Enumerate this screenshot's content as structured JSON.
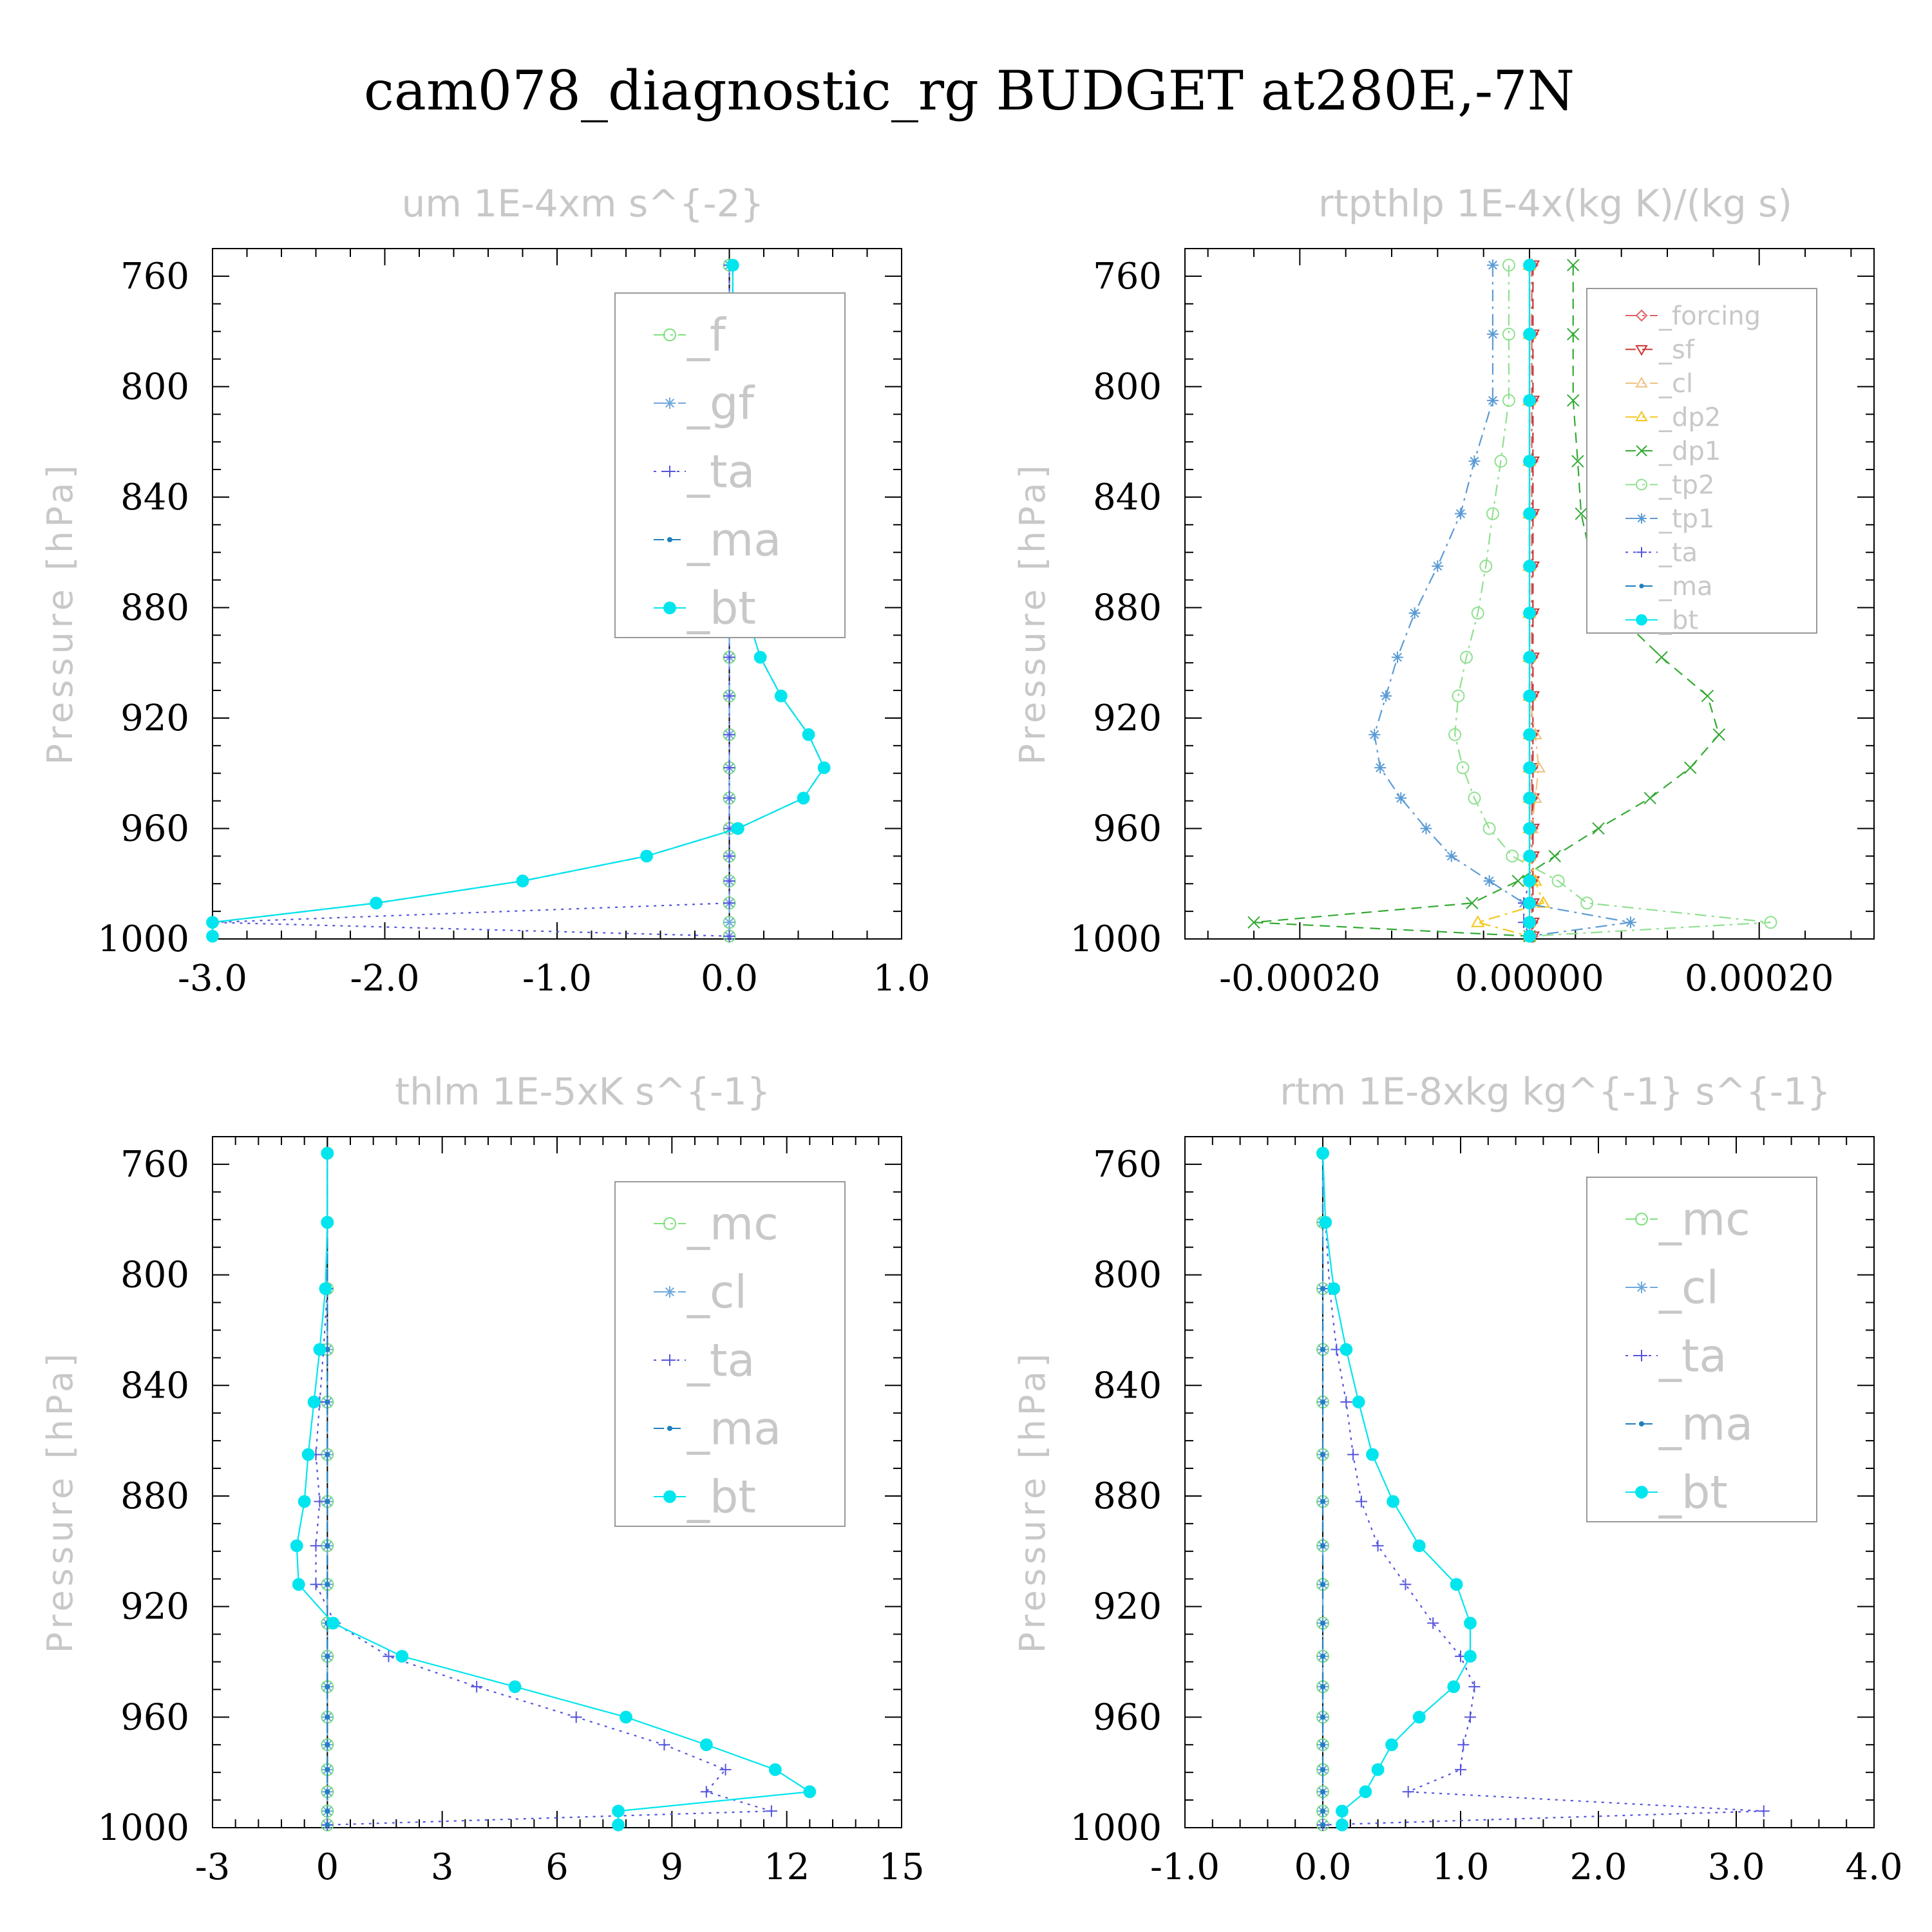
{
  "title": "cam078_diagnostic_rg  BUDGET at280E,-7N",
  "chart_data": [
    {
      "type": "line",
      "title": "um   1E-4xm s^{-2}",
      "ylabel": "Pressure [hPa]",
      "xlim": [
        -3.0,
        1.0
      ],
      "ylim": [
        1000,
        750
      ],
      "xticks": [
        "-3.0",
        "-2.0",
        "-1.0",
        "0.0",
        "1.0"
      ],
      "xtick_values": [
        -3,
        -2,
        -1,
        0,
        1
      ],
      "yticks": [
        "760",
        "800",
        "840",
        "880",
        "920",
        "960",
        "1000"
      ],
      "ytick_values": [
        760,
        800,
        840,
        880,
        920,
        960,
        1000
      ],
      "pressure": [
        756,
        781,
        805,
        827,
        846,
        865,
        882,
        898,
        912,
        926,
        938,
        949,
        960,
        970,
        979,
        987,
        994,
        999
      ],
      "legend_size": "large",
      "series": [
        {
          "name": "_f",
          "color": "#7fe07f",
          "marker": "circle-open",
          "dash": "dash-dot",
          "values": [
            0,
            0,
            0,
            0,
            0,
            0,
            0,
            0,
            0,
            0,
            0,
            0,
            0,
            0,
            0,
            0,
            0,
            0
          ]
        },
        {
          "name": "_gf",
          "color": "#6fa8dc",
          "marker": "asterisk",
          "dash": "dash-dot",
          "values": [
            0,
            0,
            0,
            0,
            0,
            0,
            0,
            0,
            0,
            0,
            0,
            0,
            0,
            0,
            0,
            0,
            0,
            0
          ]
        },
        {
          "name": "_ta",
          "color": "#5555dd",
          "marker": "plus",
          "dash": "dot",
          "values": [
            0,
            0,
            0,
            0,
            0,
            0,
            0,
            0,
            0,
            0,
            0,
            0,
            0,
            0,
            0,
            0,
            -3.0,
            0
          ]
        },
        {
          "name": "_ma",
          "color": "#1f7fbf",
          "marker": "dot",
          "dash": "dash",
          "values": [
            0.02,
            0.02,
            0.03,
            0.03,
            0.05,
            0.07,
            0.1,
            0.18,
            0.3,
            0.46,
            0.55,
            0.43,
            0.05,
            -0.48,
            -1.2,
            -2.05,
            -3.0,
            -3.0
          ]
        },
        {
          "name": "_bt",
          "color": "#00e5ee",
          "marker": "filled",
          "dash": "solid",
          "values": [
            0.02,
            0.02,
            0.03,
            0.03,
            0.05,
            0.07,
            0.1,
            0.18,
            0.3,
            0.46,
            0.55,
            0.43,
            0.05,
            -0.48,
            -1.2,
            -2.05,
            -3.0,
            -3.0
          ]
        }
      ]
    },
    {
      "type": "line",
      "title": "rtpthlp   1E-4x(kg K)/(kg s)",
      "ylabel": "Pressure [hPa]",
      "xlim": [
        -0.0003,
        0.0003
      ],
      "ylim": [
        1000,
        750
      ],
      "xticks": [
        "-0.00020",
        "0.00000",
        "0.00020"
      ],
      "xtick_values": [
        -0.0002,
        0,
        0.0002
      ],
      "yticks": [
        "760",
        "800",
        "840",
        "880",
        "920",
        "960",
        "1000"
      ],
      "ytick_values": [
        760,
        800,
        840,
        880,
        920,
        960,
        1000
      ],
      "pressure": [
        756,
        781,
        805,
        827,
        846,
        865,
        882,
        898,
        912,
        926,
        938,
        949,
        960,
        970,
        979,
        987,
        994,
        999
      ],
      "legend_size": "small",
      "series": [
        {
          "name": "_forcing",
          "color": "#e06060",
          "marker": "diamond-open",
          "dash": "dash-dot",
          "values": [
            2e-06,
            2e-06,
            2e-06,
            2e-06,
            2e-06,
            2e-06,
            2e-06,
            2e-06,
            2e-06,
            2e-06,
            2e-06,
            2e-06,
            2e-06,
            2e-06,
            2e-06,
            2e-06,
            2e-06,
            2e-06
          ]
        },
        {
          "name": "_sf",
          "color": "#cc3333",
          "marker": "triangle-down-open",
          "dash": "dash",
          "values": [
            3e-06,
            3e-06,
            3e-06,
            3e-06,
            3e-06,
            3e-06,
            3e-06,
            3e-06,
            3e-06,
            3e-06,
            3e-06,
            3e-06,
            3e-06,
            3e-06,
            3e-06,
            3e-06,
            3e-06,
            3e-06
          ]
        },
        {
          "name": "_cl",
          "color": "#f0c080",
          "marker": "triangle-up-open",
          "dash": "dash-dot",
          "values": [
            0,
            0,
            0,
            0,
            0,
            0,
            0,
            0,
            0,
            5e-06,
            8e-06,
            5e-06,
            2e-06,
            0,
            0,
            0,
            0,
            0
          ]
        },
        {
          "name": "_dp2",
          "color": "#f5c518",
          "marker": "triangle-up-open",
          "dash": "dash-dot",
          "values": [
            0,
            0,
            0,
            0,
            0,
            0,
            0,
            0,
            0,
            0,
            0,
            0,
            0,
            0,
            5e-06,
            1.2e-05,
            -4.5e-05,
            0
          ]
        },
        {
          "name": "_dp1",
          "color": "#33aa33",
          "marker": "cross",
          "dash": "dash",
          "values": [
            3.8e-05,
            3.8e-05,
            3.8e-05,
            4.2e-05,
            4.5e-05,
            5.5e-05,
            7.5e-05,
            0.000115,
            0.000155,
            0.000165,
            0.00014,
            0.000105,
            6e-05,
            2.2e-05,
            -1e-05,
            -5e-05,
            -0.00024,
            0
          ]
        },
        {
          "name": "_tp2",
          "color": "#90e090",
          "marker": "circle-open",
          "dash": "dash-dot",
          "values": [
            -1.8e-05,
            -1.8e-05,
            -1.8e-05,
            -2.5e-05,
            -3.2e-05,
            -3.8e-05,
            -4.5e-05,
            -5.5e-05,
            -6.2e-05,
            -6.5e-05,
            -5.8e-05,
            -4.8e-05,
            -3.5e-05,
            -1.5e-05,
            2.5e-05,
            5e-05,
            0.00021,
            0
          ]
        },
        {
          "name": "_tp1",
          "color": "#5b9bd5",
          "marker": "asterisk",
          "dash": "dash-dot",
          "values": [
            -3.2e-05,
            -3.2e-05,
            -3.2e-05,
            -4.8e-05,
            -6e-05,
            -8e-05,
            -0.0001,
            -0.000115,
            -0.000125,
            -0.000135,
            -0.00013,
            -0.000112,
            -9e-05,
            -6.8e-05,
            -3.5e-05,
            -5e-06,
            8.8e-05,
            0
          ]
        },
        {
          "name": "_ta",
          "color": "#5555dd",
          "marker": "plus",
          "dash": "dot",
          "values": [
            0,
            0,
            0,
            0,
            0,
            0,
            0,
            0,
            0,
            0,
            0,
            0,
            0,
            0,
            0,
            -5e-06,
            -5e-06,
            0
          ]
        },
        {
          "name": "_ma",
          "color": "#1f7fbf",
          "marker": "dot",
          "dash": "dash",
          "values": [
            0,
            0,
            0,
            0,
            0,
            0,
            0,
            0,
            0,
            0,
            0,
            0,
            0,
            0,
            0,
            0,
            0,
            0
          ]
        },
        {
          "name": "_bt",
          "color": "#00e5ee",
          "marker": "filled",
          "dash": "solid",
          "values": [
            0,
            0,
            0,
            0,
            0,
            0,
            0,
            0,
            0,
            0,
            0,
            0,
            0,
            0,
            0,
            0,
            0,
            0
          ]
        }
      ]
    },
    {
      "type": "line",
      "title": "thlm   1E-5xK s^{-1}",
      "ylabel": "Pressure [hPa]",
      "xlim": [
        -3,
        15
      ],
      "ylim": [
        1000,
        750
      ],
      "xticks": [
        "-3",
        "0",
        "3",
        "6",
        "9",
        "12",
        "15"
      ],
      "xtick_values": [
        -3,
        0,
        3,
        6,
        9,
        12,
        15
      ],
      "yticks": [
        "760",
        "800",
        "840",
        "880",
        "920",
        "960",
        "1000"
      ],
      "ytick_values": [
        760,
        800,
        840,
        880,
        920,
        960,
        1000
      ],
      "pressure": [
        756,
        781,
        805,
        827,
        846,
        865,
        882,
        898,
        912,
        926,
        938,
        949,
        960,
        970,
        979,
        987,
        994,
        999
      ],
      "legend_size": "large",
      "series": [
        {
          "name": "_mc",
          "color": "#7fe07f",
          "marker": "circle-open",
          "dash": "dash-dot",
          "values": [
            0,
            0,
            0,
            0,
            0,
            0,
            0,
            0,
            0,
            0,
            0,
            0,
            0,
            0,
            0,
            0,
            0,
            0
          ]
        },
        {
          "name": "_cl",
          "color": "#6fa8dc",
          "marker": "asterisk",
          "dash": "dash-dot",
          "values": [
            0,
            0,
            0,
            0,
            0,
            0,
            0,
            0,
            0,
            0,
            0,
            0,
            0,
            0,
            0,
            0,
            0,
            0
          ]
        },
        {
          "name": "_ta",
          "color": "#5555dd",
          "marker": "plus",
          "dash": "dot",
          "values": [
            0,
            0,
            0,
            -0.1,
            -0.2,
            -0.3,
            -0.2,
            -0.3,
            -0.3,
            0.2,
            1.6,
            3.9,
            6.5,
            8.8,
            10.4,
            9.9,
            11.6,
            0
          ]
        },
        {
          "name": "_ma",
          "color": "#1f7fbf",
          "marker": "dot",
          "dash": "dash",
          "values": [
            0,
            0,
            0,
            0,
            0,
            0,
            0,
            0,
            0,
            0,
            0,
            0,
            0,
            0,
            0,
            0,
            0,
            0
          ]
        },
        {
          "name": "_bt",
          "color": "#00e5ee",
          "marker": "filled",
          "dash": "solid",
          "values": [
            0,
            0,
            -0.05,
            -0.2,
            -0.35,
            -0.5,
            -0.6,
            -0.8,
            -0.75,
            0.15,
            1.95,
            4.9,
            7.8,
            9.9,
            11.7,
            12.6,
            7.6,
            7.6
          ]
        }
      ]
    },
    {
      "type": "line",
      "title": "rtm   1E-8xkg kg^{-1} s^{-1}",
      "ylabel": "Pressure [hPa]",
      "xlim": [
        -1.0,
        4.0
      ],
      "ylim": [
        1000,
        750
      ],
      "xticks": [
        "-1.0",
        "0.0",
        "1.0",
        "2.0",
        "3.0",
        "4.0"
      ],
      "xtick_values": [
        -1,
        0,
        1,
        2,
        3,
        4
      ],
      "yticks": [
        "760",
        "800",
        "840",
        "880",
        "920",
        "960",
        "1000"
      ],
      "ytick_values": [
        760,
        800,
        840,
        880,
        920,
        960,
        1000
      ],
      "pressure": [
        756,
        781,
        805,
        827,
        846,
        865,
        882,
        898,
        912,
        926,
        938,
        949,
        960,
        970,
        979,
        987,
        994,
        999
      ],
      "legend_size": "large",
      "series": [
        {
          "name": "_mc",
          "color": "#7fe07f",
          "marker": "circle-open",
          "dash": "dash-dot",
          "values": [
            0,
            0,
            0,
            0,
            0,
            0,
            0,
            0,
            0,
            0,
            0,
            0,
            0,
            0,
            0,
            0,
            0,
            0
          ]
        },
        {
          "name": "_cl",
          "color": "#6fa8dc",
          "marker": "asterisk",
          "dash": "dash-dot",
          "values": [
            0,
            0,
            0,
            0,
            0,
            0,
            0,
            0,
            0,
            0,
            0,
            0,
            0,
            0,
            0,
            0,
            0,
            0
          ]
        },
        {
          "name": "_ta",
          "color": "#5555dd",
          "marker": "plus",
          "dash": "dot",
          "values": [
            0,
            0.02,
            0.05,
            0.1,
            0.17,
            0.22,
            0.28,
            0.4,
            0.6,
            0.8,
            1.0,
            1.1,
            1.07,
            1.02,
            1.0,
            0.62,
            3.2,
            0
          ]
        },
        {
          "name": "_ma",
          "color": "#1f7fbf",
          "marker": "dot",
          "dash": "dash",
          "values": [
            0,
            0,
            0,
            0,
            0,
            0,
            0,
            0,
            0,
            0,
            0,
            0,
            0,
            0,
            0,
            0,
            0,
            0
          ]
        },
        {
          "name": "_bt",
          "color": "#00e5ee",
          "marker": "filled",
          "dash": "solid",
          "values": [
            0.0,
            0.02,
            0.08,
            0.17,
            0.26,
            0.36,
            0.51,
            0.7,
            0.97,
            1.07,
            1.07,
            0.95,
            0.7,
            0.5,
            0.4,
            0.31,
            0.14,
            0.14
          ]
        }
      ]
    }
  ]
}
